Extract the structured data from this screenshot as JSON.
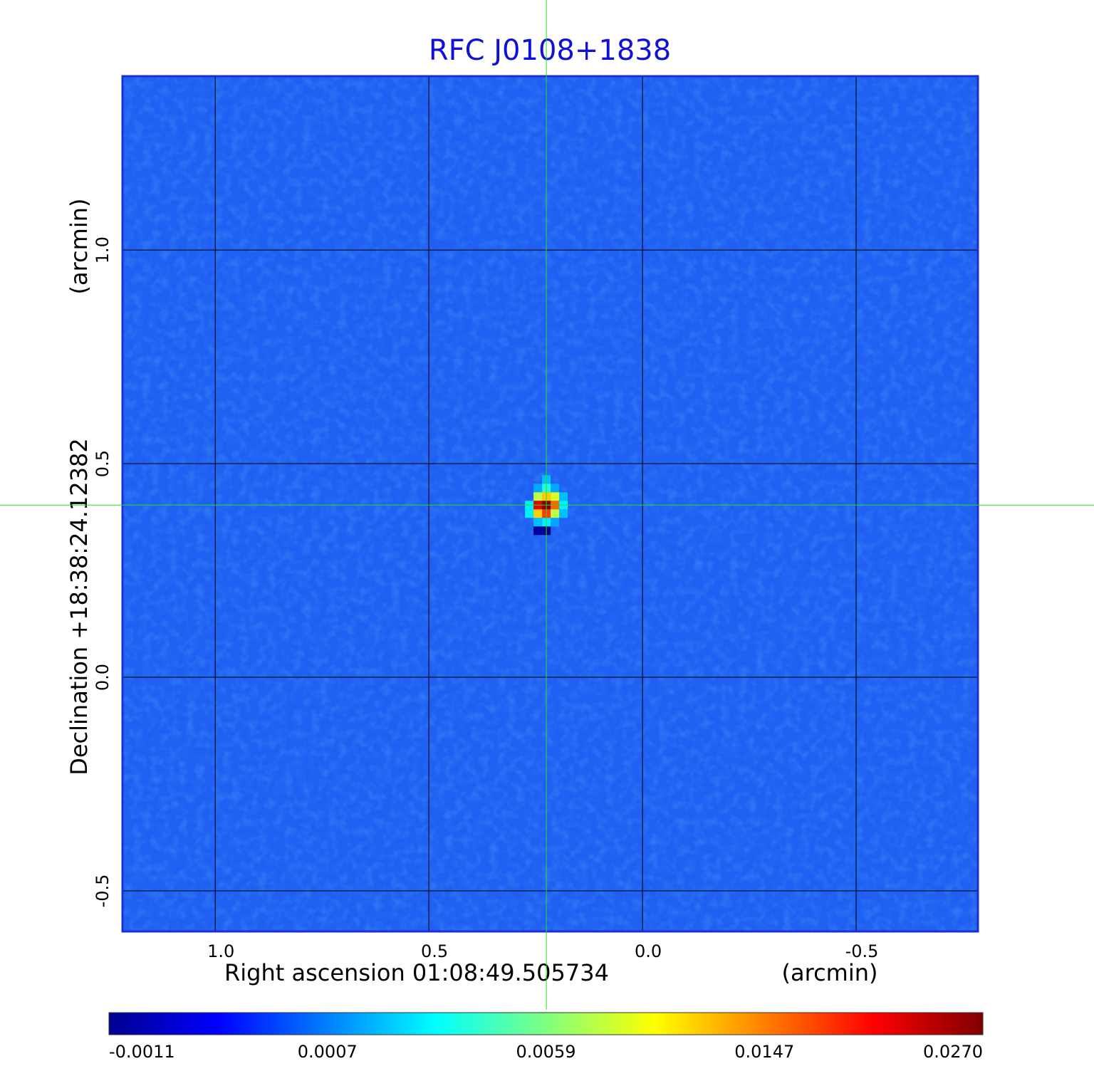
{
  "chart_data": {
    "type": "image",
    "title": "RFC J0108+1838",
    "xlabel": "Right ascension  01:08:49.505734",
    "xunit": "(arcmin)",
    "ylabel": "Declination  +18:38:24.12382",
    "yunit": "(arcmin)",
    "xlim": [
      1.217,
      -0.785
    ],
    "ylim": [
      -0.595,
      1.407
    ],
    "xticks": [
      {
        "value": 1,
        "label": "1.0"
      },
      0.5,
      {
        "value": 0,
        "label": "0.0"
      },
      -0.5
    ],
    "yticks": [
      -0.5,
      {
        "value": 0,
        "label": "0.0"
      },
      0.5,
      {
        "value": 1,
        "label": "1.0"
      }
    ],
    "grid": true,
    "colormap": "jet",
    "colorbar_ticks": [
      -0.0011,
      0.0007,
      0.0059,
      0.0147,
      {
        "value": 0.027,
        "label": "0.0270"
      }
    ],
    "crosshair": {
      "x": 0.225,
      "y": 0.403
    },
    "pixels": {
      "x": [
        0.225,
        0.205,
        0.225,
        0.245,
        0.185,
        0.205,
        0.225,
        0.245,
        0.185,
        0.205,
        0.225,
        0.245,
        0.265,
        0.185,
        0.205,
        0.225,
        0.245,
        0.265,
        0.205,
        0.225,
        0.245,
        0.225,
        0.245
      ],
      "y": [
        0.463,
        0.443,
        0.443,
        0.443,
        0.423,
        0.423,
        0.423,
        0.423,
        0.403,
        0.403,
        0.403,
        0.403,
        0.403,
        0.383,
        0.383,
        0.383,
        0.383,
        0.383,
        0.363,
        0.363,
        0.363,
        0.343,
        0.343
      ],
      "values": [
        0.002,
        0.0015,
        0.004,
        0.0015,
        0.002,
        0.009,
        0.012,
        0.008,
        0.003,
        0.016,
        0.027,
        0.022,
        0.003,
        0.002,
        0.008,
        0.018,
        0.012,
        0.003,
        0.0015,
        0.003,
        0.002,
        -0.0011,
        -0.0009
      ]
    }
  }
}
